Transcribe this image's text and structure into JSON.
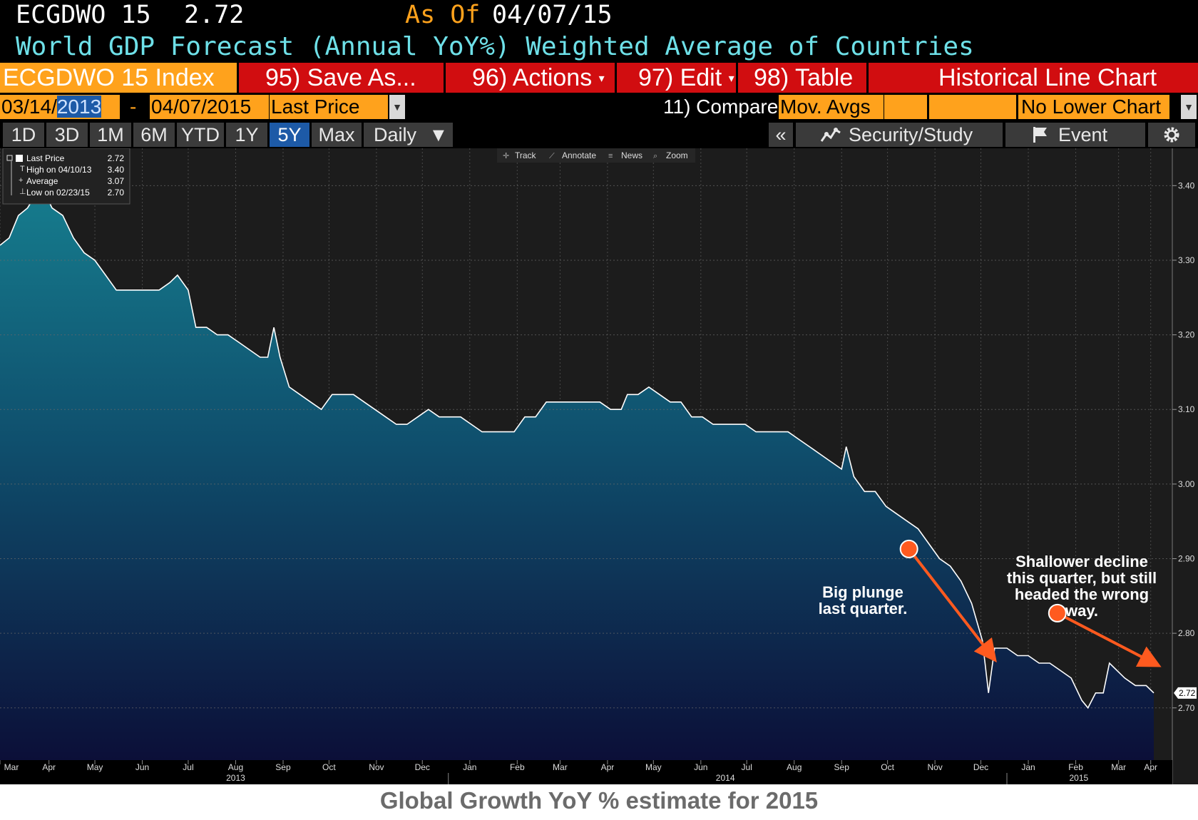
{
  "header": {
    "ticker": "ECGDWO 15",
    "last_value": "2.72",
    "as_of_label": "As Of",
    "as_of_date": "04/07/15",
    "description": "World GDP Forecast (Annual YoY%) Weighted Average of Countries"
  },
  "toolbar": {
    "index_label": "ECGDWO 15 Index",
    "save_as": "95) Save As...",
    "actions": "96) Actions",
    "edit": "97) Edit",
    "table": "98) Table",
    "chart_type": "Historical Line Chart"
  },
  "range": {
    "start_prefix": "03/14/",
    "start_year": "2013",
    "dash": "-",
    "end": "04/07/2015",
    "field": "Last Price",
    "compare": "11) Compare",
    "mov_avgs": "Mov. Avgs",
    "lower_chart": "No Lower Chart"
  },
  "periods": [
    "1D",
    "3D",
    "1M",
    "6M",
    "YTD",
    "1Y",
    "5Y",
    "Max"
  ],
  "active_period": "5Y",
  "frequency": "Daily",
  "right_tools": {
    "collapse": "«",
    "security_study": "Security/Study",
    "event": "Event"
  },
  "chart_tools": [
    "Track",
    "Annotate",
    "News",
    "Zoom"
  ],
  "colors": {
    "accent_red": "#d10d10",
    "amber": "#ffa21c",
    "cyan_title": "#6ee0e8",
    "arrow": "#ff5a1f",
    "area_top": "#167d8e",
    "area_bottom": "#0c0f38"
  },
  "chart_data": {
    "type": "area",
    "title": "Global Growth YoY % estimate for 2015",
    "series": [
      {
        "name": "Last Price",
        "points": [
          [
            "2013-03-14",
            3.32
          ],
          [
            "2013-03-20",
            3.33
          ],
          [
            "2013-03-26",
            3.36
          ],
          [
            "2013-04-01",
            3.37
          ],
          [
            "2013-04-10",
            3.4
          ],
          [
            "2013-04-17",
            3.37
          ],
          [
            "2013-04-24",
            3.36
          ],
          [
            "2013-05-01",
            3.33
          ],
          [
            "2013-05-08",
            3.31
          ],
          [
            "2013-05-15",
            3.3
          ],
          [
            "2013-05-22",
            3.28
          ],
          [
            "2013-05-29",
            3.26
          ],
          [
            "2013-06-05",
            3.26
          ],
          [
            "2013-06-12",
            3.26
          ],
          [
            "2013-06-19",
            3.26
          ],
          [
            "2013-06-26",
            3.26
          ],
          [
            "2013-07-03",
            3.27
          ],
          [
            "2013-07-08",
            3.28
          ],
          [
            "2013-07-15",
            3.26
          ],
          [
            "2013-07-20",
            3.21
          ],
          [
            "2013-07-27",
            3.21
          ],
          [
            "2013-08-03",
            3.2
          ],
          [
            "2013-08-10",
            3.2
          ],
          [
            "2013-08-17",
            3.19
          ],
          [
            "2013-08-24",
            3.18
          ],
          [
            "2013-08-31",
            3.17
          ],
          [
            "2013-09-05",
            3.17
          ],
          [
            "2013-09-09",
            3.21
          ],
          [
            "2013-09-13",
            3.17
          ],
          [
            "2013-09-19",
            3.13
          ],
          [
            "2013-09-26",
            3.12
          ],
          [
            "2013-10-03",
            3.11
          ],
          [
            "2013-10-10",
            3.1
          ],
          [
            "2013-10-17",
            3.12
          ],
          [
            "2013-10-24",
            3.12
          ],
          [
            "2013-10-31",
            3.12
          ],
          [
            "2013-11-07",
            3.11
          ],
          [
            "2013-11-14",
            3.1
          ],
          [
            "2013-11-21",
            3.09
          ],
          [
            "2013-11-28",
            3.08
          ],
          [
            "2013-12-05",
            3.08
          ],
          [
            "2013-12-12",
            3.09
          ],
          [
            "2013-12-19",
            3.1
          ],
          [
            "2013-12-26",
            3.09
          ],
          [
            "2014-01-02",
            3.09
          ],
          [
            "2014-01-09",
            3.09
          ],
          [
            "2014-01-16",
            3.08
          ],
          [
            "2014-01-23",
            3.07
          ],
          [
            "2014-01-30",
            3.07
          ],
          [
            "2014-02-06",
            3.07
          ],
          [
            "2014-02-13",
            3.07
          ],
          [
            "2014-02-20",
            3.09
          ],
          [
            "2014-02-27",
            3.09
          ],
          [
            "2014-03-06",
            3.11
          ],
          [
            "2014-03-13",
            3.11
          ],
          [
            "2014-03-20",
            3.11
          ],
          [
            "2014-03-27",
            3.11
          ],
          [
            "2014-04-03",
            3.11
          ],
          [
            "2014-04-10",
            3.11
          ],
          [
            "2014-04-17",
            3.1
          ],
          [
            "2014-04-24",
            3.1
          ],
          [
            "2014-04-28",
            3.12
          ],
          [
            "2014-05-05",
            3.12
          ],
          [
            "2014-05-12",
            3.13
          ],
          [
            "2014-05-19",
            3.12
          ],
          [
            "2014-05-26",
            3.11
          ],
          [
            "2014-06-02",
            3.11
          ],
          [
            "2014-06-09",
            3.09
          ],
          [
            "2014-06-16",
            3.09
          ],
          [
            "2014-06-23",
            3.08
          ],
          [
            "2014-06-30",
            3.08
          ],
          [
            "2014-07-07",
            3.08
          ],
          [
            "2014-07-14",
            3.08
          ],
          [
            "2014-07-21",
            3.07
          ],
          [
            "2014-07-28",
            3.07
          ],
          [
            "2014-08-04",
            3.07
          ],
          [
            "2014-08-11",
            3.07
          ],
          [
            "2014-08-18",
            3.06
          ],
          [
            "2014-08-25",
            3.05
          ],
          [
            "2014-09-01",
            3.04
          ],
          [
            "2014-09-08",
            3.03
          ],
          [
            "2014-09-15",
            3.02
          ],
          [
            "2014-09-18",
            3.05
          ],
          [
            "2014-09-23",
            3.01
          ],
          [
            "2014-09-30",
            2.99
          ],
          [
            "2014-10-07",
            2.99
          ],
          [
            "2014-10-14",
            2.97
          ],
          [
            "2014-10-21",
            2.96
          ],
          [
            "2014-10-28",
            2.95
          ],
          [
            "2014-11-04",
            2.94
          ],
          [
            "2014-11-11",
            2.92
          ],
          [
            "2014-11-18",
            2.9
          ],
          [
            "2014-11-25",
            2.89
          ],
          [
            "2014-12-02",
            2.87
          ],
          [
            "2014-12-09",
            2.84
          ],
          [
            "2014-12-16",
            2.79
          ],
          [
            "2014-12-20",
            2.72
          ],
          [
            "2014-12-24",
            2.78
          ],
          [
            "2015-01-01",
            2.78
          ],
          [
            "2015-01-08",
            2.77
          ],
          [
            "2015-01-15",
            2.77
          ],
          [
            "2015-01-22",
            2.76
          ],
          [
            "2015-01-29",
            2.76
          ],
          [
            "2015-02-05",
            2.75
          ],
          [
            "2015-02-12",
            2.74
          ],
          [
            "2015-02-19",
            2.71
          ],
          [
            "2015-02-23",
            2.7
          ],
          [
            "2015-02-28",
            2.72
          ],
          [
            "2015-03-05",
            2.72
          ],
          [
            "2015-03-09",
            2.76
          ],
          [
            "2015-03-14",
            2.75
          ],
          [
            "2015-03-19",
            2.74
          ],
          [
            "2015-03-26",
            2.73
          ],
          [
            "2015-04-02",
            2.73
          ],
          [
            "2015-04-07",
            2.72
          ]
        ]
      }
    ],
    "xlim": [
      "2013-03-14",
      "2015-04-07"
    ],
    "ylim": [
      2.63,
      3.45
    ],
    "yticks": [
      "3.40",
      "3.30",
      "3.20",
      "3.10",
      "3.00",
      "2.90",
      "2.80",
      "2.70"
    ],
    "last_value_label": "2.72",
    "month_labels": [
      {
        "date": "2013-03-14",
        "label": "Mar"
      },
      {
        "date": "2013-04-15",
        "label": "Apr"
      },
      {
        "date": "2013-05-15",
        "label": "May"
      },
      {
        "date": "2013-06-15",
        "label": "Jun"
      },
      {
        "date": "2013-07-15",
        "label": "Jul"
      },
      {
        "date": "2013-08-15",
        "label": "Aug"
      },
      {
        "date": "2013-09-15",
        "label": "Sep"
      },
      {
        "date": "2013-10-15",
        "label": "Oct"
      },
      {
        "date": "2013-11-15",
        "label": "Nov"
      },
      {
        "date": "2013-12-15",
        "label": "Dec"
      },
      {
        "date": "2014-01-15",
        "label": "Jan"
      },
      {
        "date": "2014-02-15",
        "label": "Feb"
      },
      {
        "date": "2014-03-15",
        "label": "Mar"
      },
      {
        "date": "2014-04-15",
        "label": "Apr"
      },
      {
        "date": "2014-05-15",
        "label": "May"
      },
      {
        "date": "2014-06-15",
        "label": "Jun"
      },
      {
        "date": "2014-07-15",
        "label": "Jul"
      },
      {
        "date": "2014-08-15",
        "label": "Aug"
      },
      {
        "date": "2014-09-15",
        "label": "Sep"
      },
      {
        "date": "2014-10-15",
        "label": "Oct"
      },
      {
        "date": "2014-11-15",
        "label": "Nov"
      },
      {
        "date": "2014-12-15",
        "label": "Dec"
      },
      {
        "date": "2015-01-15",
        "label": "Jan"
      },
      {
        "date": "2015-02-15",
        "label": "Feb"
      },
      {
        "date": "2015-03-15",
        "label": "Mar"
      },
      {
        "date": "2015-04-05",
        "label": "Apr"
      }
    ],
    "year_labels": [
      {
        "date": "2013-08-15",
        "label": "2013"
      },
      {
        "date": "2014-07-01",
        "label": "2014"
      },
      {
        "date": "2015-02-17",
        "label": "2015"
      }
    ],
    "legend": [
      {
        "label": "Last Price",
        "value": "2.72"
      },
      {
        "label": "High on 04/10/13",
        "value": "3.40"
      },
      {
        "label": "Average",
        "value": "3.07"
      },
      {
        "label": "Low on 02/23/15",
        "value": "2.70"
      }
    ],
    "annotations": [
      {
        "text_lines": [
          "Big plunge",
          "last quarter."
        ],
        "arrow_from": [
          "2014-10-29",
          2.913
        ],
        "arrow_to": [
          "2014-12-22",
          2.77
        ]
      },
      {
        "text_lines": [
          "Shallower decline",
          "this quarter, but still",
          "headed the wrong",
          "way."
        ],
        "arrow_from": [
          "2015-02-03",
          2.827
        ],
        "arrow_to": [
          "2015-04-07",
          2.76
        ]
      }
    ]
  },
  "caption": "Global Growth YoY % estimate for 2015"
}
